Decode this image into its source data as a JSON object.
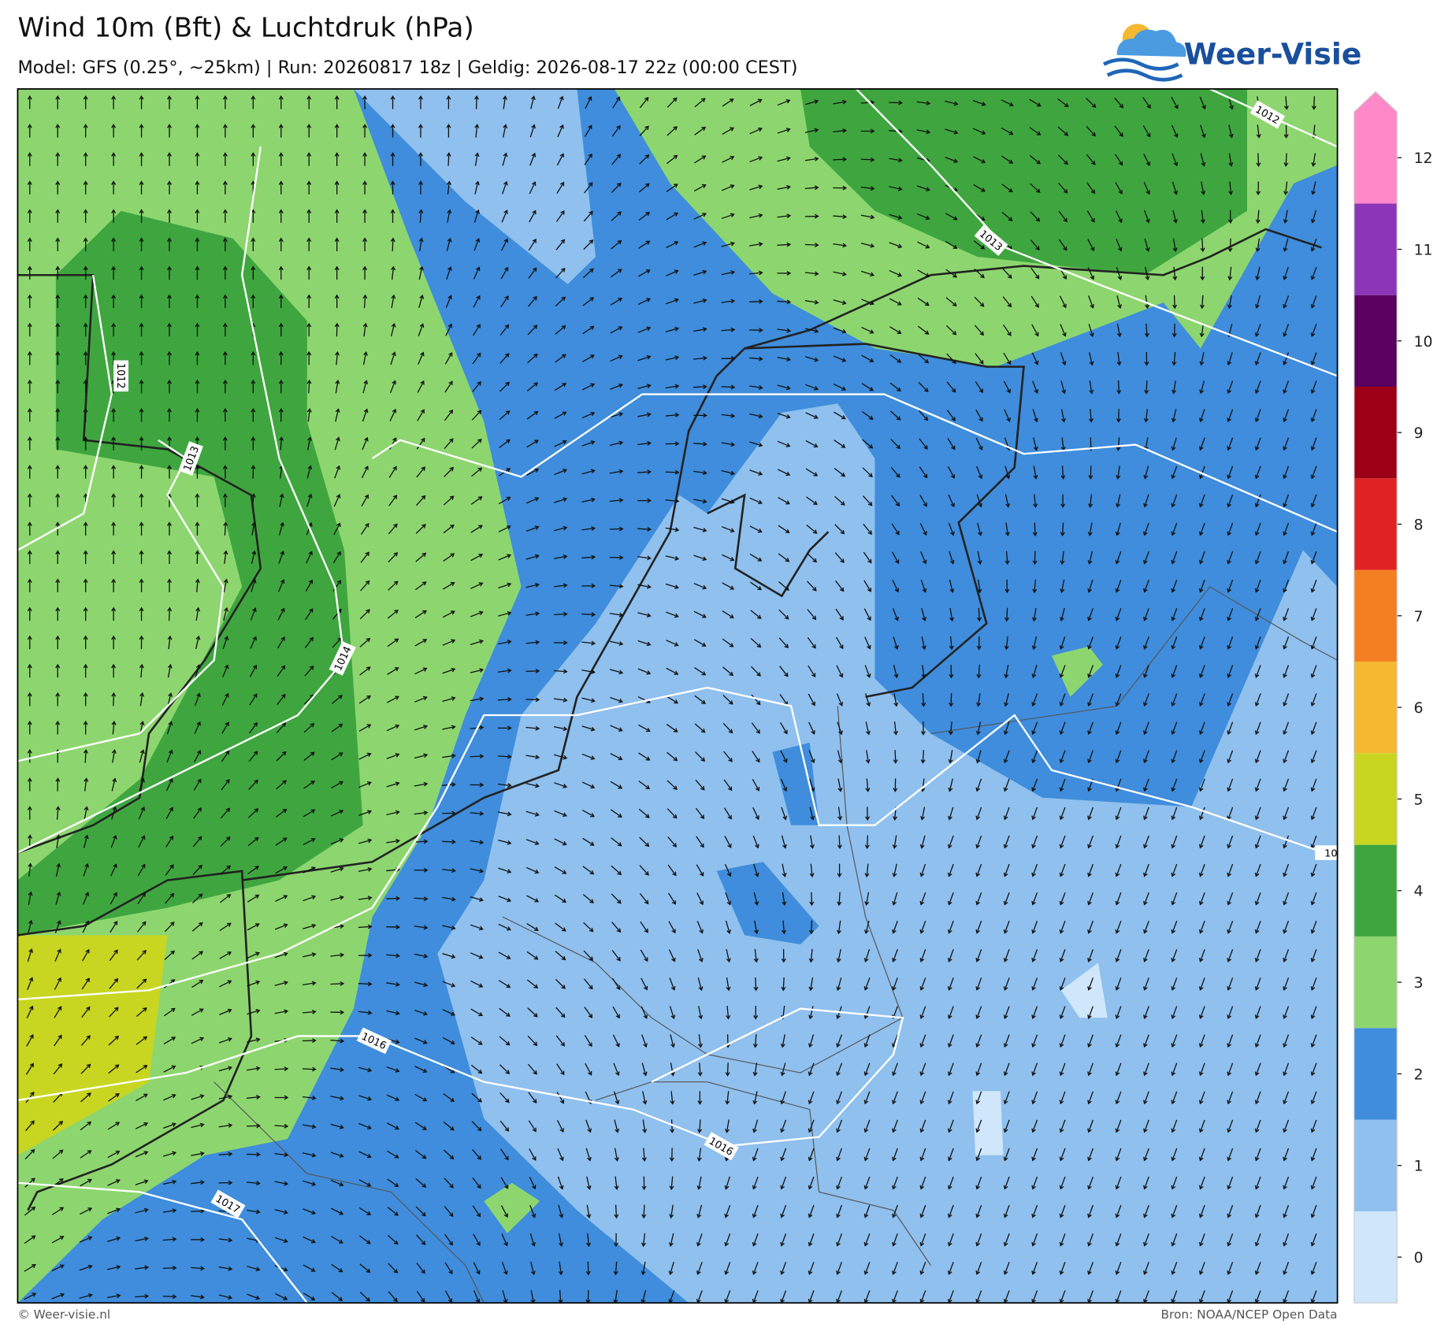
{
  "header": {
    "title": "Wind 10m (Bft) & Luchtdruk (hPa)",
    "subtitle": "Model: GFS (0.25°, ~25km)  |  Run: 20260817 18z  |  Geldig: 2026-08-17 22z (00:00 CEST)",
    "logo": "Weer-Visie"
  },
  "map": {
    "isobar_labels": [
      1012,
      1013,
      1014,
      1016,
      1016,
      1017,
      1012,
      1013,
      10
    ]
  },
  "colorbar": {
    "levels": [
      {
        "value": 0,
        "color": "#cfe6fb"
      },
      {
        "value": 1,
        "color": "#8fc0ee"
      },
      {
        "value": 2,
        "color": "#3f8ddc"
      },
      {
        "value": 3,
        "color": "#8dd66f"
      },
      {
        "value": 4,
        "color": "#3fa63f"
      },
      {
        "value": 5,
        "color": "#c8d621"
      },
      {
        "value": 6,
        "color": "#f5b830"
      },
      {
        "value": 7,
        "color": "#f47f22"
      },
      {
        "value": 8,
        "color": "#e02222"
      },
      {
        "value": 9,
        "color": "#9c0016"
      },
      {
        "value": 10,
        "color": "#5a0060"
      },
      {
        "value": 11,
        "color": "#8d35b9"
      },
      {
        "value": 12,
        "color": "#ff88c8"
      }
    ]
  },
  "footer": {
    "left": "© Weer-visie.nl",
    "right": "Bron: NOAA/NCEP Open Data"
  }
}
